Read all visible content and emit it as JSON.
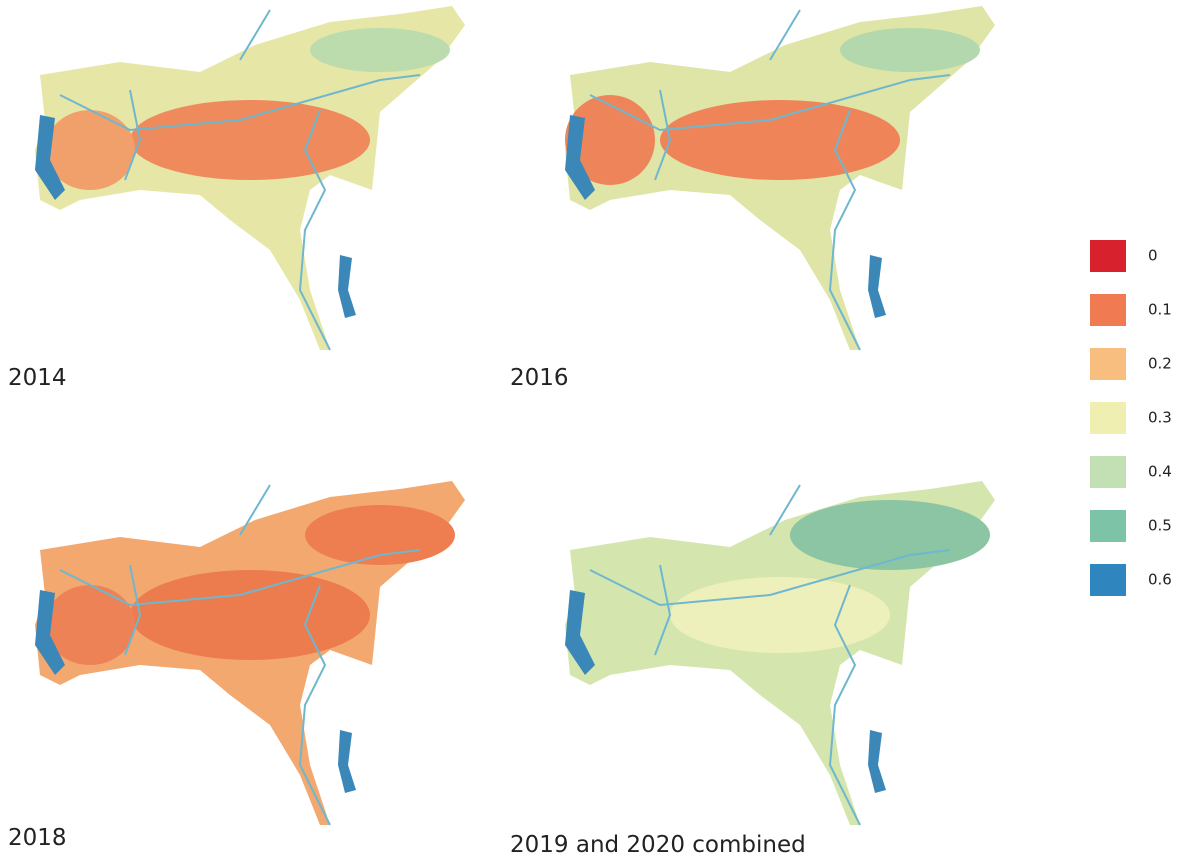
{
  "panels": [
    {
      "label": "2014"
    },
    {
      "label": "2016"
    },
    {
      "label": "2018"
    },
    {
      "label": "2019 and 2020 combined"
    }
  ],
  "legend": {
    "values": [
      0,
      0.1,
      0.2,
      0.3,
      0.4,
      0.5,
      0.6
    ],
    "colors": [
      "#d7222e",
      "#f07b52",
      "#f8be80",
      "#eeefb0",
      "#c3e0b4",
      "#7cc3a8",
      "#2f86bf"
    ]
  }
}
